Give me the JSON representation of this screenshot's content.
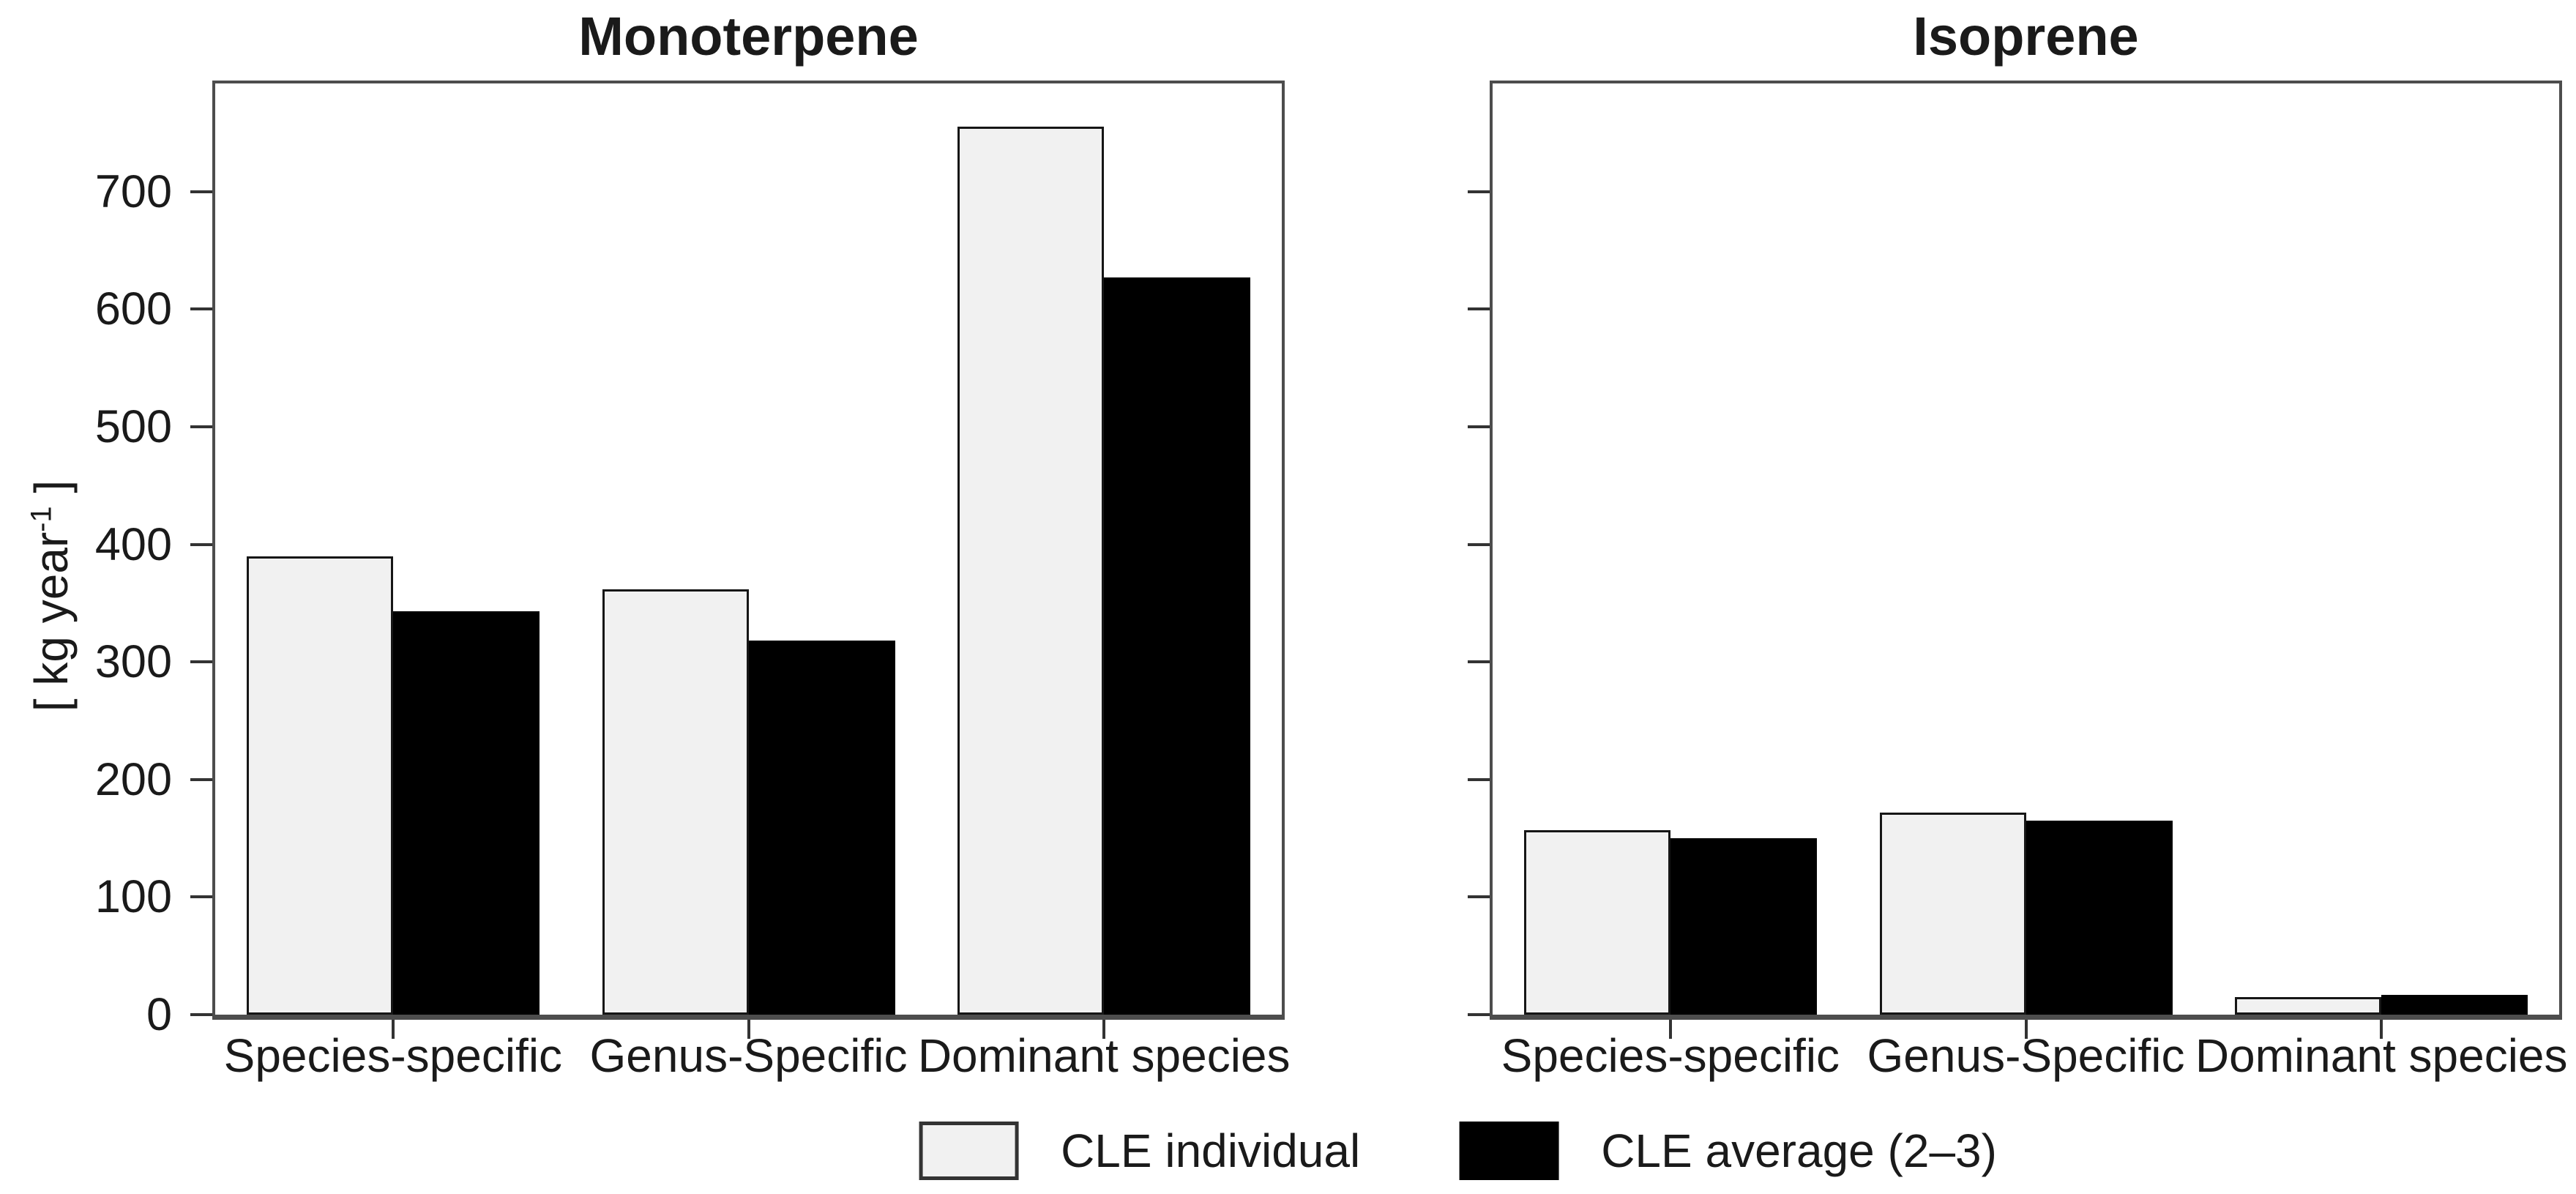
{
  "figure": {
    "y_axis_label": {
      "prefix": "[ kg year",
      "superscript": "-1",
      "suffix": " ]"
    }
  },
  "colors": {
    "bar_light_fill": "#f1f1f1",
    "bar_dark_fill": "#000000",
    "frame": "#4d4d4d",
    "tick": "#333333"
  },
  "axis": {
    "yticks": [
      0,
      100,
      200,
      300,
      400,
      500,
      600,
      700
    ],
    "ymax": 792
  },
  "chart_data": [
    {
      "type": "bar",
      "title": "Monoterpene",
      "ylabel": "[ kg year^-1 ]",
      "ylim": [
        0,
        792
      ],
      "grid": false,
      "legend_position": "bottom-center",
      "categories": [
        "Species-specific",
        "Genus-Specific",
        "Dominant species"
      ],
      "series": [
        {
          "name": "CLE individual",
          "values": [
            390,
            362,
            755
          ]
        },
        {
          "name": "CLE average (2–3)",
          "values": [
            343,
            318,
            627
          ]
        }
      ]
    },
    {
      "type": "bar",
      "title": "Isoprene",
      "ylabel": "",
      "ylim": [
        0,
        792
      ],
      "grid": false,
      "categories": [
        "Species-specific",
        "Genus-Specific",
        "Dominant species"
      ],
      "series": [
        {
          "name": "CLE individual",
          "values": [
            157,
            172,
            15
          ]
        },
        {
          "name": "CLE average (2–3)",
          "values": [
            150,
            165,
            17
          ]
        }
      ]
    }
  ]
}
